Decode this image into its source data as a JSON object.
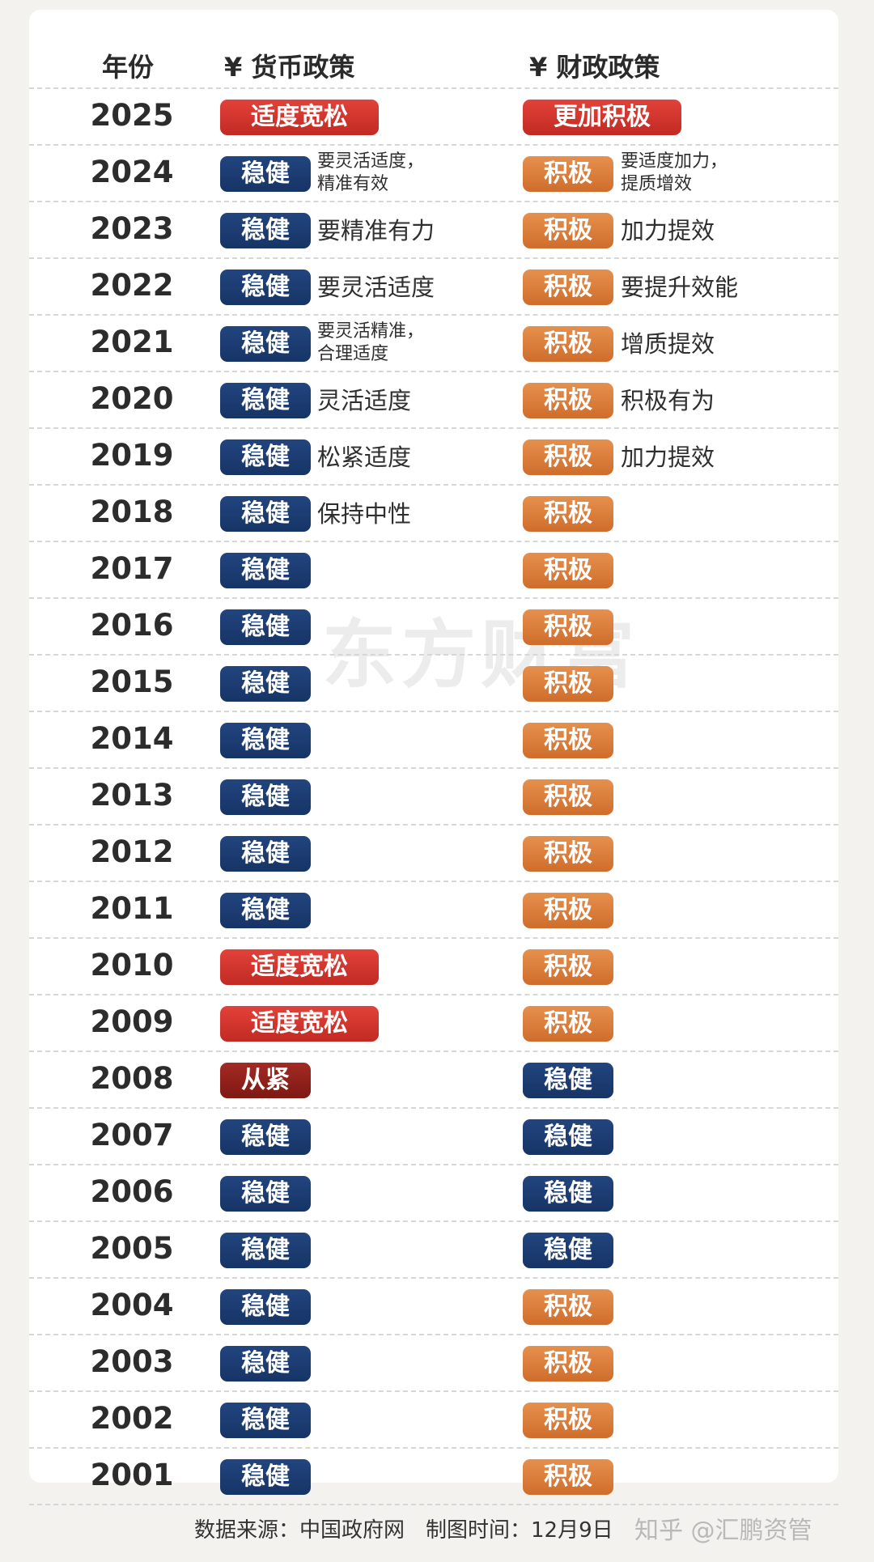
{
  "header": {
    "year": "年份",
    "monetary": "¥ 货币政策",
    "fiscal": "¥ 财政政策"
  },
  "colors": {
    "navy": "#1b3c74",
    "orange": "#da7c3a",
    "red": "#d3352e",
    "dark_red": "#8e201a"
  },
  "rows": [
    {
      "year": "2025",
      "monetary": "适度宽松",
      "monetary_style": "red",
      "monetary_note": "",
      "fiscal": "更加积极",
      "fiscal_style": "red",
      "fiscal_note": ""
    },
    {
      "year": "2024",
      "monetary": "稳健",
      "monetary_style": "navy",
      "monetary_note": "要灵活适度，\n精准有效",
      "fiscal": "积极",
      "fiscal_style": "orange",
      "fiscal_note": "要适度加力，\n提质增效"
    },
    {
      "year": "2023",
      "monetary": "稳健",
      "monetary_style": "navy",
      "monetary_note": "要精准有力",
      "fiscal": "积极",
      "fiscal_style": "orange",
      "fiscal_note": "加力提效"
    },
    {
      "year": "2022",
      "monetary": "稳健",
      "monetary_style": "navy",
      "monetary_note": "要灵活适度",
      "fiscal": "积极",
      "fiscal_style": "orange",
      "fiscal_note": "要提升效能"
    },
    {
      "year": "2021",
      "monetary": "稳健",
      "monetary_style": "navy",
      "monetary_note": "要灵活精准，\n合理适度",
      "fiscal": "积极",
      "fiscal_style": "orange",
      "fiscal_note": "增质提效"
    },
    {
      "year": "2020",
      "monetary": "稳健",
      "monetary_style": "navy",
      "monetary_note": "灵活适度",
      "fiscal": "积极",
      "fiscal_style": "orange",
      "fiscal_note": "积极有为"
    },
    {
      "year": "2019",
      "monetary": "稳健",
      "monetary_style": "navy",
      "monetary_note": "松紧适度",
      "fiscal": "积极",
      "fiscal_style": "orange",
      "fiscal_note": "加力提效"
    },
    {
      "year": "2018",
      "monetary": "稳健",
      "monetary_style": "navy",
      "monetary_note": "保持中性",
      "fiscal": "积极",
      "fiscal_style": "orange",
      "fiscal_note": ""
    },
    {
      "year": "2017",
      "monetary": "稳健",
      "monetary_style": "navy",
      "monetary_note": "",
      "fiscal": "积极",
      "fiscal_style": "orange",
      "fiscal_note": ""
    },
    {
      "year": "2016",
      "monetary": "稳健",
      "monetary_style": "navy",
      "monetary_note": "",
      "fiscal": "积极",
      "fiscal_style": "orange",
      "fiscal_note": ""
    },
    {
      "year": "2015",
      "monetary": "稳健",
      "monetary_style": "navy",
      "monetary_note": "",
      "fiscal": "积极",
      "fiscal_style": "orange",
      "fiscal_note": ""
    },
    {
      "year": "2014",
      "monetary": "稳健",
      "monetary_style": "navy",
      "monetary_note": "",
      "fiscal": "积极",
      "fiscal_style": "orange",
      "fiscal_note": ""
    },
    {
      "year": "2013",
      "monetary": "稳健",
      "monetary_style": "navy",
      "monetary_note": "",
      "fiscal": "积极",
      "fiscal_style": "orange",
      "fiscal_note": ""
    },
    {
      "year": "2012",
      "monetary": "稳健",
      "monetary_style": "navy",
      "monetary_note": "",
      "fiscal": "积极",
      "fiscal_style": "orange",
      "fiscal_note": ""
    },
    {
      "year": "2011",
      "monetary": "稳健",
      "monetary_style": "navy",
      "monetary_note": "",
      "fiscal": "积极",
      "fiscal_style": "orange",
      "fiscal_note": ""
    },
    {
      "year": "2010",
      "monetary": "适度宽松",
      "monetary_style": "red",
      "monetary_note": "",
      "fiscal": "积极",
      "fiscal_style": "orange",
      "fiscal_note": ""
    },
    {
      "year": "2009",
      "monetary": "适度宽松",
      "monetary_style": "red",
      "monetary_note": "",
      "fiscal": "积极",
      "fiscal_style": "orange",
      "fiscal_note": ""
    },
    {
      "year": "2008",
      "monetary": "从紧",
      "monetary_style": "dark",
      "monetary_note": "",
      "fiscal": "稳健",
      "fiscal_style": "navy",
      "fiscal_note": ""
    },
    {
      "year": "2007",
      "monetary": "稳健",
      "monetary_style": "navy",
      "monetary_note": "",
      "fiscal": "稳健",
      "fiscal_style": "navy",
      "fiscal_note": ""
    },
    {
      "year": "2006",
      "monetary": "稳健",
      "monetary_style": "navy",
      "monetary_note": "",
      "fiscal": "稳健",
      "fiscal_style": "navy",
      "fiscal_note": ""
    },
    {
      "year": "2005",
      "monetary": "稳健",
      "monetary_style": "navy",
      "monetary_note": "",
      "fiscal": "稳健",
      "fiscal_style": "navy",
      "fiscal_note": ""
    },
    {
      "year": "2004",
      "monetary": "稳健",
      "monetary_style": "navy",
      "monetary_note": "",
      "fiscal": "积极",
      "fiscal_style": "orange",
      "fiscal_note": ""
    },
    {
      "year": "2003",
      "monetary": "稳健",
      "monetary_style": "navy",
      "monetary_note": "",
      "fiscal": "积极",
      "fiscal_style": "orange",
      "fiscal_note": ""
    },
    {
      "year": "2002",
      "monetary": "稳健",
      "monetary_style": "navy",
      "monetary_note": "",
      "fiscal": "积极",
      "fiscal_style": "orange",
      "fiscal_note": ""
    },
    {
      "year": "2001",
      "monetary": "稳健",
      "monetary_style": "navy",
      "monetary_note": "",
      "fiscal": "积极",
      "fiscal_style": "orange",
      "fiscal_note": ""
    }
  ],
  "watermark": "东方财富",
  "footer": "数据来源：中国政府网　制图时间：12月9日",
  "credit": "知乎 @汇鹏资管"
}
